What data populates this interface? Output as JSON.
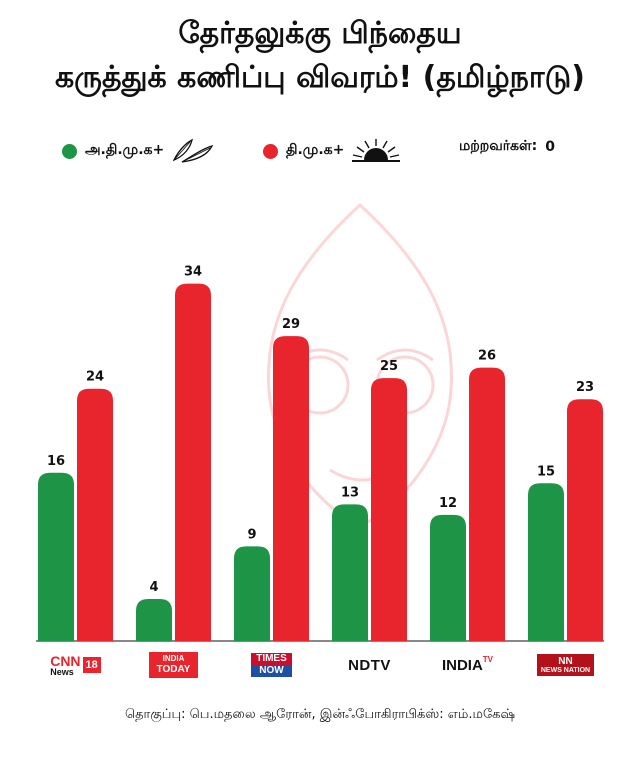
{
  "title_line1": "தேர்தலுக்கு பிந்தைய",
  "title_line2": "கருத்துக் கணிப்பு விவரம்! (தமிழ்நாடு)",
  "legend": {
    "green_label": "அ.தி.மு.க+",
    "red_label": "தி.மு.க+",
    "others_label": "மற்றவர்கள்:",
    "others_value": "0"
  },
  "colors": {
    "green": "#1e9446",
    "red": "#e8242c"
  },
  "channels": [
    {
      "name": "CNN News18",
      "top": "CNN",
      "badge": "18",
      "sub": "News"
    },
    {
      "name": "India Today",
      "top": "INDIA",
      "sub": "TODAY"
    },
    {
      "name": "Times Now",
      "top": "TIMES",
      "sub": "NOW"
    },
    {
      "name": "NDTV",
      "top": "NDTV"
    },
    {
      "name": "India TV",
      "top": "INDIA",
      "sup": "TV"
    },
    {
      "name": "News Nation",
      "top": "NN",
      "sub": "NEWS NATION"
    }
  ],
  "chart_data": {
    "type": "bar",
    "categories": [
      "CNN News18",
      "India Today",
      "Times Now",
      "NDTV",
      "India TV",
      "News Nation"
    ],
    "series": [
      {
        "name": "அ.தி.மு.க+",
        "values": [
          16,
          4,
          9,
          13,
          12,
          15
        ]
      },
      {
        "name": "தி.மு.க+",
        "values": [
          24,
          34,
          29,
          25,
          26,
          23
        ]
      }
    ],
    "ylim": [
      0,
      39
    ],
    "grid": false,
    "legend_position": "top"
  },
  "credit": "தொகுப்பு: பெ.மதலை ஆரோன், இன்ஃபோகிராபிக்ஸ்: எம்.மகேஷ்"
}
